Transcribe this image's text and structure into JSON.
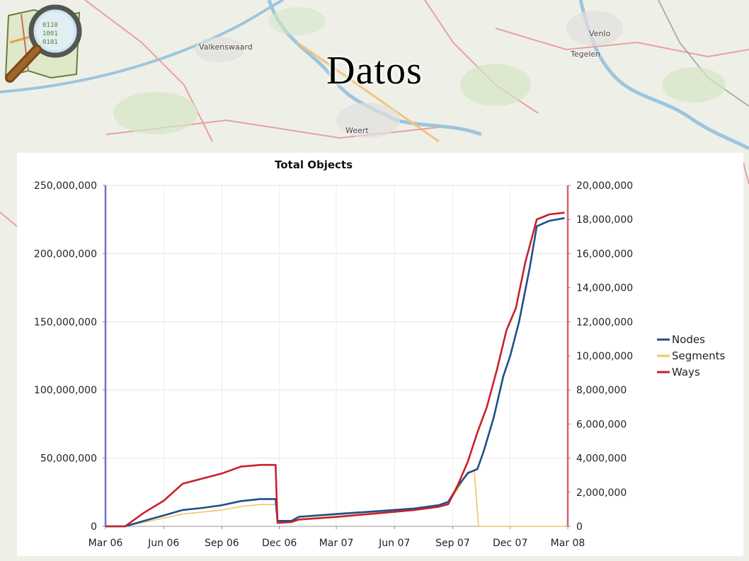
{
  "slide": {
    "title": "Datos"
  },
  "map_labels": {
    "valkenswaard": "Valkenswaard",
    "venlo": "Venlo",
    "tegelen": "Tegelen",
    "weert": "Weert"
  },
  "colors": {
    "nodes": "#1f4e8c",
    "segments": "#f2c46a",
    "ways": "#c8202a",
    "left_axis": "#7070c8",
    "right_axis": "#d86070"
  },
  "chart_data": {
    "type": "line",
    "title": "Total Objects",
    "x_ticks": [
      "Mar 06",
      "Jun 06",
      "Sep 06",
      "Dec 06",
      "Mar 07",
      "Jun 07",
      "Sep 07",
      "Dec 07",
      "Mar 08"
    ],
    "x_range": [
      "Mar 06",
      "Mar 08"
    ],
    "y_left": {
      "range": [
        0,
        250000000
      ],
      "ticks": [
        "0",
        "50,000,000",
        "100,000,000",
        "150,000,000",
        "200,000,000",
        "250,000,000"
      ]
    },
    "y_right": {
      "range": [
        0,
        20000000
      ],
      "ticks": [
        "0",
        "2,000,000",
        "4,000,000",
        "6,000,000",
        "8,000,000",
        "10,000,000",
        "12,000,000",
        "14,000,000",
        "16,000,000",
        "18,000,000",
        "20,000,000"
      ]
    },
    "legend": {
      "position": "right",
      "entries": [
        "Nodes",
        "Segments",
        "Ways"
      ]
    },
    "grid": true,
    "series": [
      {
        "name": "Nodes",
        "axis": "left",
        "points": [
          [
            "2006-03-01",
            0
          ],
          [
            "2006-04-01",
            0
          ],
          [
            "2006-05-01",
            4000000
          ],
          [
            "2006-06-01",
            8000000
          ],
          [
            "2006-07-01",
            12000000
          ],
          [
            "2006-08-01",
            13500000
          ],
          [
            "2006-09-01",
            15500000
          ],
          [
            "2006-10-01",
            18500000
          ],
          [
            "2006-11-01",
            20000000
          ],
          [
            "2006-11-25",
            20000000
          ],
          [
            "2006-11-28",
            4000000
          ],
          [
            "2006-12-20",
            4000000
          ],
          [
            "2007-01-01",
            7000000
          ],
          [
            "2007-03-01",
            9000000
          ],
          [
            "2007-05-01",
            11000000
          ],
          [
            "2007-07-01",
            13000000
          ],
          [
            "2007-08-10",
            15500000
          ],
          [
            "2007-08-25",
            18000000
          ],
          [
            "2007-09-10",
            30000000
          ],
          [
            "2007-09-25",
            39000000
          ],
          [
            "2007-10-10",
            42000000
          ],
          [
            "2007-10-20",
            55000000
          ],
          [
            "2007-11-05",
            80000000
          ],
          [
            "2007-11-20",
            110000000
          ],
          [
            "2007-12-01",
            125000000
          ],
          [
            "2007-12-15",
            150000000
          ],
          [
            "2008-01-01",
            190000000
          ],
          [
            "2008-01-12",
            220000000
          ],
          [
            "2008-02-01",
            224000000
          ],
          [
            "2008-02-25",
            226000000
          ]
        ]
      },
      {
        "name": "Segments",
        "axis": "left",
        "points": [
          [
            "2006-03-01",
            0
          ],
          [
            "2006-04-01",
            0
          ],
          [
            "2006-05-01",
            3000000
          ],
          [
            "2006-06-01",
            6000000
          ],
          [
            "2006-07-01",
            9000000
          ],
          [
            "2006-08-01",
            10500000
          ],
          [
            "2006-09-01",
            12000000
          ],
          [
            "2006-10-01",
            14500000
          ],
          [
            "2006-11-01",
            16000000
          ],
          [
            "2006-11-25",
            16000000
          ],
          [
            "2006-11-28",
            3500000
          ],
          [
            "2006-12-20",
            3500000
          ],
          [
            "2007-01-01",
            6500000
          ],
          [
            "2007-03-01",
            8500000
          ],
          [
            "2007-05-01",
            10500000
          ],
          [
            "2007-07-01",
            12500000
          ],
          [
            "2007-08-10",
            15000000
          ],
          [
            "2007-08-25",
            17000000
          ],
          [
            "2007-09-10",
            28000000
          ],
          [
            "2007-09-25",
            40000000
          ],
          [
            "2007-10-05",
            41000000
          ],
          [
            "2007-10-12",
            0
          ],
          [
            "2008-02-25",
            0
          ]
        ]
      },
      {
        "name": "Ways",
        "axis": "right",
        "points": [
          [
            "2006-03-01",
            0
          ],
          [
            "2006-04-01",
            0
          ],
          [
            "2006-05-01",
            800000
          ],
          [
            "2006-06-01",
            1500000
          ],
          [
            "2006-07-01",
            2500000
          ],
          [
            "2006-08-01",
            2800000
          ],
          [
            "2006-09-01",
            3100000
          ],
          [
            "2006-10-01",
            3500000
          ],
          [
            "2006-11-01",
            3600000
          ],
          [
            "2006-11-25",
            3600000
          ],
          [
            "2006-11-28",
            200000
          ],
          [
            "2006-12-20",
            250000
          ],
          [
            "2007-01-01",
            400000
          ],
          [
            "2007-03-01",
            550000
          ],
          [
            "2007-05-01",
            750000
          ],
          [
            "2007-07-01",
            950000
          ],
          [
            "2007-08-10",
            1150000
          ],
          [
            "2007-08-25",
            1300000
          ],
          [
            "2007-09-10",
            2500000
          ],
          [
            "2007-09-25",
            3800000
          ],
          [
            "2007-10-10",
            5500000
          ],
          [
            "2007-10-25",
            7000000
          ],
          [
            "2007-11-10",
            9200000
          ],
          [
            "2007-11-25",
            11500000
          ],
          [
            "2007-12-10",
            12800000
          ],
          [
            "2007-12-25",
            15500000
          ],
          [
            "2008-01-12",
            18000000
          ],
          [
            "2008-02-01",
            18300000
          ],
          [
            "2008-02-25",
            18400000
          ]
        ]
      }
    ]
  }
}
